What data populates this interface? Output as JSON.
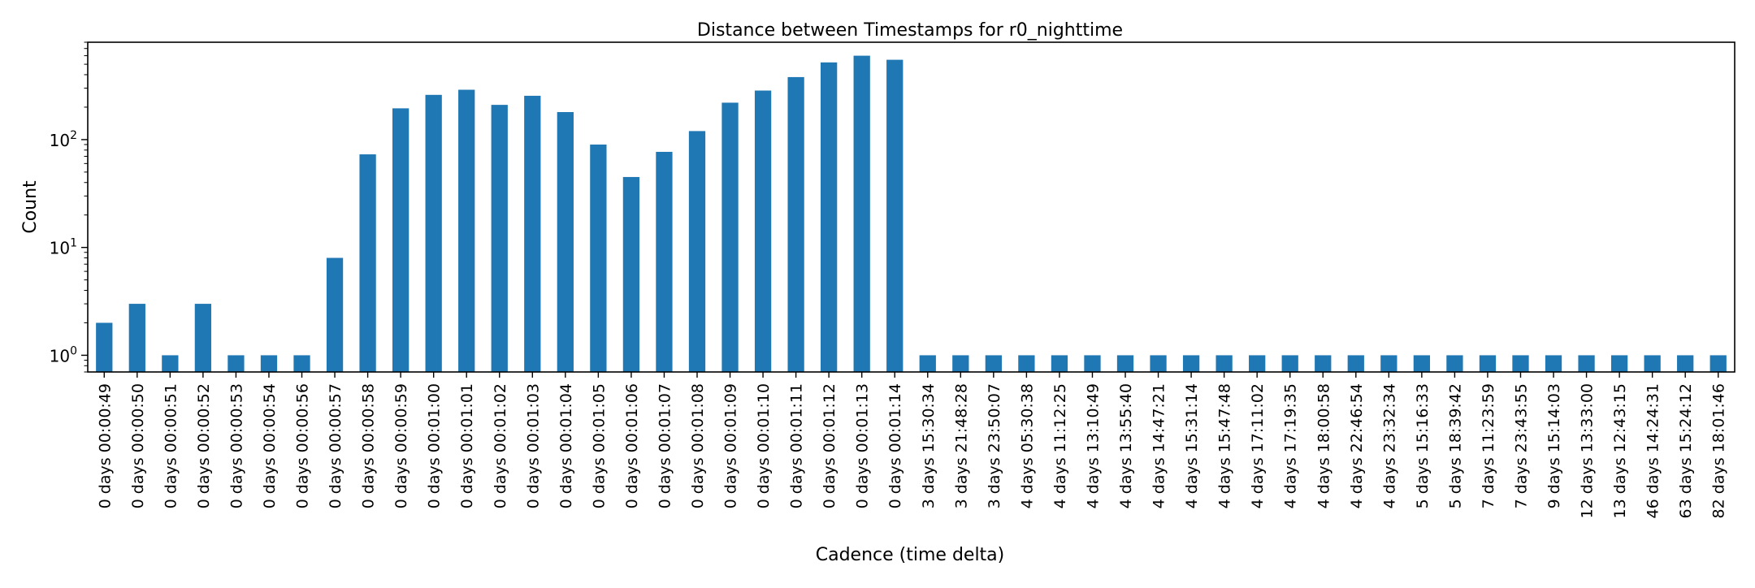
{
  "chart_data": {
    "type": "bar",
    "title": "Distance between Timestamps for r0_nighttime",
    "xlabel": "Cadence (time delta)",
    "ylabel": "Count",
    "yscale": "log",
    "ylim": [
      0.7,
      800
    ],
    "yticks": [
      {
        "value": 1,
        "base": "10",
        "exp": "0"
      },
      {
        "value": 10,
        "base": "10",
        "exp": "1"
      },
      {
        "value": 100,
        "base": "10",
        "exp": "2"
      }
    ],
    "grid": false,
    "bar_color": "#1f77b4",
    "categories": [
      "0 days 00:00:49",
      "0 days 00:00:50",
      "0 days 00:00:51",
      "0 days 00:00:52",
      "0 days 00:00:53",
      "0 days 00:00:54",
      "0 days 00:00:56",
      "0 days 00:00:57",
      "0 days 00:00:58",
      "0 days 00:00:59",
      "0 days 00:01:00",
      "0 days 00:01:01",
      "0 days 00:01:02",
      "0 days 00:01:03",
      "0 days 00:01:04",
      "0 days 00:01:05",
      "0 days 00:01:06",
      "0 days 00:01:07",
      "0 days 00:01:08",
      "0 days 00:01:09",
      "0 days 00:01:10",
      "0 days 00:01:11",
      "0 days 00:01:12",
      "0 days 00:01:13",
      "0 days 00:01:14",
      "3 days 15:30:34",
      "3 days 21:48:28",
      "3 days 23:50:07",
      "4 days 05:30:38",
      "4 days 11:12:25",
      "4 days 13:10:49",
      "4 days 13:55:40",
      "4 days 14:47:21",
      "4 days 15:31:14",
      "4 days 15:47:48",
      "4 days 17:11:02",
      "4 days 17:19:35",
      "4 days 18:00:58",
      "4 days 22:46:54",
      "4 days 23:32:34",
      "5 days 15:16:33",
      "5 days 18:39:42",
      "7 days 11:23:59",
      "7 days 23:43:55",
      "9 days 15:14:03",
      "12 days 13:33:00",
      "13 days 12:43:15",
      "46 days 14:24:31",
      "63 days 15:24:12",
      "82 days 18:01:46"
    ],
    "values": [
      2,
      3,
      1,
      3,
      1,
      1,
      1,
      8,
      73,
      195,
      260,
      290,
      210,
      255,
      180,
      90,
      45,
      77,
      120,
      220,
      285,
      380,
      520,
      600,
      550,
      1,
      1,
      1,
      1,
      1,
      1,
      1,
      1,
      1,
      1,
      1,
      1,
      1,
      1,
      1,
      1,
      1,
      1,
      1,
      1,
      1,
      1,
      1,
      1,
      1
    ]
  }
}
